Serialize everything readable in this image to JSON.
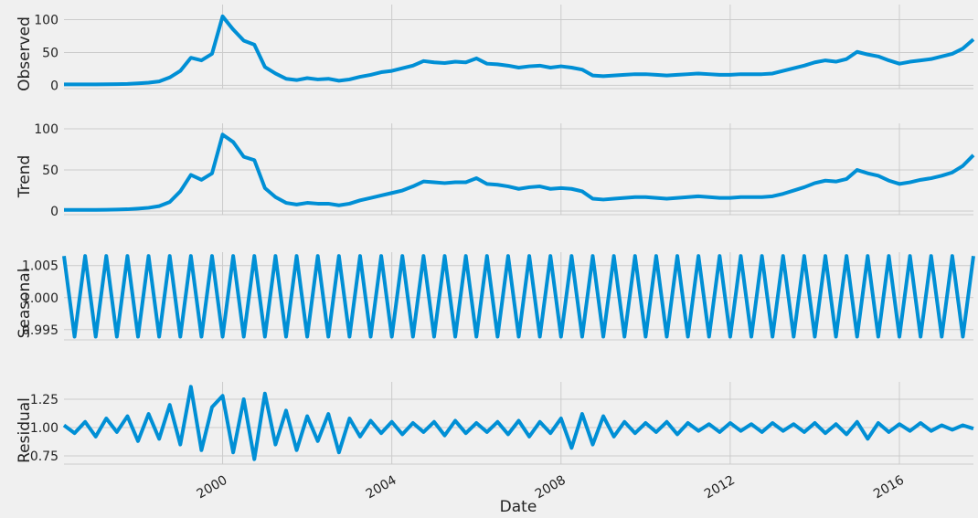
{
  "chart_data": {
    "type": "line",
    "color": "#008fd5",
    "xlabel": "Date",
    "xlim": [
      1996.25,
      2017.75
    ],
    "xticks": [
      2000,
      2004,
      2008,
      2012,
      2016
    ],
    "x": [
      1996.25,
      1996.5,
      1996.75,
      1997,
      1997.25,
      1997.5,
      1997.75,
      1998,
      1998.25,
      1998.5,
      1998.75,
      1999,
      1999.25,
      1999.5,
      1999.75,
      2000,
      2000.25,
      2000.5,
      2000.75,
      2001,
      2001.25,
      2001.5,
      2001.75,
      2002,
      2002.25,
      2002.5,
      2002.75,
      2003,
      2003.25,
      2003.5,
      2003.75,
      2004,
      2004.25,
      2004.5,
      2004.75,
      2005,
      2005.25,
      2005.5,
      2005.75,
      2006,
      2006.25,
      2006.5,
      2006.75,
      2007,
      2007.25,
      2007.5,
      2007.75,
      2008,
      2008.25,
      2008.5,
      2008.75,
      2009,
      2009.25,
      2009.5,
      2009.75,
      2010,
      2010.25,
      2010.5,
      2010.75,
      2011,
      2011.25,
      2011.5,
      2011.75,
      2012,
      2012.25,
      2012.5,
      2012.75,
      2013,
      2013.25,
      2013.5,
      2013.75,
      2014,
      2014.25,
      2014.5,
      2014.75,
      2015,
      2015.25,
      2015.5,
      2015.75,
      2016,
      2016.25,
      2016.5,
      2016.75,
      2017,
      2017.25,
      2017.5,
      2017.75
    ],
    "panels": [
      {
        "ylabel": "Observed",
        "ylim": [
          -5,
          123
        ],
        "yticks": [
          0,
          50,
          100
        ],
        "values": [
          1.5,
          1.5,
          1.4,
          1.5,
          1.6,
          1.8,
          2.2,
          3,
          4,
          6,
          12,
          22,
          42,
          38,
          48,
          105,
          85,
          68,
          62,
          28,
          18,
          10,
          8,
          11,
          9,
          10,
          7,
          9,
          13,
          16,
          20,
          22,
          26,
          30,
          37,
          35,
          34,
          36,
          35,
          41,
          33,
          32,
          30,
          27,
          29,
          30,
          27,
          29,
          27,
          24,
          15,
          14,
          15,
          16,
          17,
          17,
          16,
          15,
          16,
          17,
          18,
          17,
          16,
          16,
          17,
          17,
          17,
          18,
          22,
          26,
          30,
          35,
          38,
          36,
          40,
          51,
          47,
          44,
          38,
          33,
          36,
          38,
          40,
          44,
          48,
          56,
          70
        ]
      },
      {
        "ylabel": "Trend",
        "ylim": [
          -4.4,
          106.7
        ],
        "yticks": [
          0,
          50,
          100
        ],
        "values": [
          1.5,
          1.5,
          1.4,
          1.5,
          1.6,
          1.8,
          2.2,
          3,
          4,
          6,
          11,
          24,
          44,
          38,
          46,
          93,
          84,
          66,
          62,
          28,
          17,
          10,
          8,
          10,
          9,
          9,
          7,
          9,
          13,
          16,
          19,
          22,
          25,
          30,
          36,
          35,
          34,
          35,
          35,
          40,
          33,
          32,
          30,
          27,
          29,
          30,
          27,
          28,
          27,
          24,
          15,
          14,
          15,
          16,
          17,
          17,
          16,
          15,
          16,
          17,
          18,
          17,
          16,
          16,
          17,
          17,
          17,
          18,
          21,
          25,
          29,
          34,
          37,
          36,
          39,
          50,
          46,
          43,
          37,
          33,
          35,
          38,
          40,
          43,
          47,
          55,
          68
        ]
      },
      {
        "ylabel": "Seasonal",
        "ylim": [
          0.9934,
          1.0071
        ],
        "yticks": [
          {
            "value": 0.995,
            "label": "0.995"
          },
          {
            "value": 1.0,
            "label": "1.000"
          },
          {
            "value": 1.005,
            "label": "1.005"
          }
        ],
        "values": [
          1.0065,
          0.9939,
          1.0065,
          0.9939,
          1.0065,
          0.9939,
          1.0065,
          0.9939,
          1.0065,
          0.9939,
          1.0065,
          0.9939,
          1.0065,
          0.9939,
          1.0065,
          0.9939,
          1.0065,
          0.9939,
          1.0065,
          0.9939,
          1.0065,
          0.9939,
          1.0065,
          0.9939,
          1.0065,
          0.9939,
          1.0065,
          0.9939,
          1.0065,
          0.9939,
          1.0065,
          0.9939,
          1.0065,
          0.9939,
          1.0065,
          0.9939,
          1.0065,
          0.9939,
          1.0065,
          0.9939,
          1.0065,
          0.9939,
          1.0065,
          0.9939,
          1.0065,
          0.9939,
          1.0065,
          0.9939,
          1.0065,
          0.9939,
          1.0065,
          0.9939,
          1.0065,
          0.9939,
          1.0065,
          0.9939,
          1.0065,
          0.9939,
          1.0065,
          0.9939,
          1.0065,
          0.9939,
          1.0065,
          0.9939,
          1.0065,
          0.9939,
          1.0065,
          0.9939,
          1.0065,
          0.9939,
          1.0065,
          0.9939,
          1.0065,
          0.9939,
          1.0065,
          0.9939,
          1.0065,
          0.9939,
          1.0065,
          0.9939,
          1.0065,
          0.9939,
          1.0065,
          0.9939,
          1.0065,
          0.9939,
          1.0065
        ]
      },
      {
        "ylabel": "Residual",
        "ylim": [
          0.677,
          1.403
        ],
        "yticks": [
          {
            "value": 0.75,
            "label": "0.75"
          },
          {
            "value": 1.0,
            "label": "1.00"
          },
          {
            "value": 1.25,
            "label": "1.25"
          }
        ],
        "values": [
          1.02,
          0.95,
          1.05,
          0.92,
          1.08,
          0.96,
          1.1,
          0.88,
          1.12,
          0.9,
          1.2,
          0.85,
          1.36,
          0.8,
          1.18,
          1.28,
          0.78,
          1.25,
          0.72,
          1.3,
          0.85,
          1.15,
          0.8,
          1.1,
          0.88,
          1.12,
          0.78,
          1.08,
          0.92,
          1.06,
          0.95,
          1.05,
          0.94,
          1.04,
          0.96,
          1.05,
          0.93,
          1.06,
          0.95,
          1.04,
          0.96,
          1.05,
          0.94,
          1.06,
          0.92,
          1.05,
          0.95,
          1.08,
          0.82,
          1.12,
          0.85,
          1.1,
          0.92,
          1.05,
          0.95,
          1.04,
          0.96,
          1.05,
          0.94,
          1.04,
          0.97,
          1.03,
          0.96,
          1.04,
          0.97,
          1.03,
          0.96,
          1.04,
          0.97,
          1.03,
          0.96,
          1.04,
          0.95,
          1.03,
          0.94,
          1.05,
          0.9,
          1.04,
          0.96,
          1.03,
          0.97,
          1.04,
          0.97,
          1.02,
          0.98,
          1.02,
          0.99
        ]
      }
    ]
  }
}
